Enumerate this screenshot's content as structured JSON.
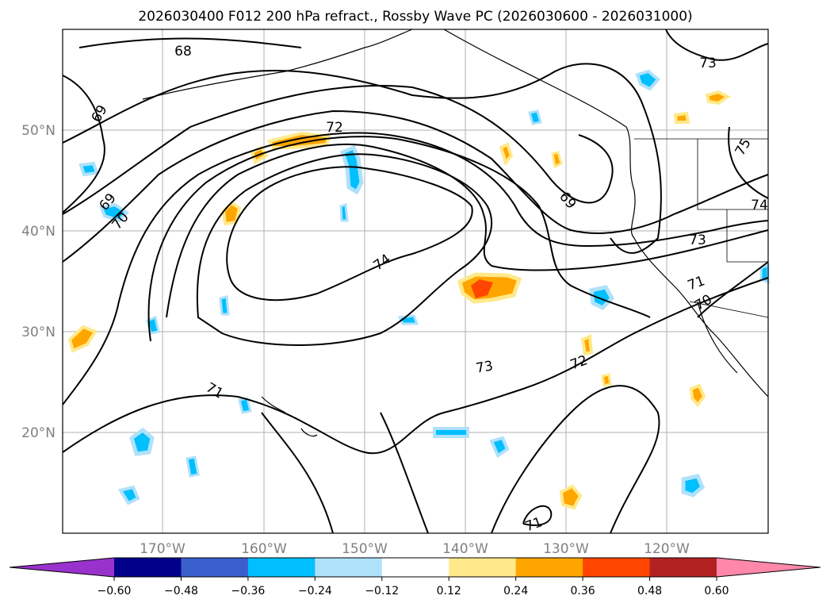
{
  "title": "2026030400 F012 200 hPa refract., Rossby Wave PC (2026030600 - 2026031000)",
  "lat_labels": [
    "20°N",
    "30°N",
    "40°N",
    "50°N"
  ],
  "lon_labels": [
    "170°W",
    "160°W",
    "150°W",
    "140°W",
    "130°W",
    "120°W"
  ],
  "contour_labels": [
    "68",
    "69",
    "69",
    "70",
    "71",
    "71",
    "71",
    "72",
    "72",
    "73",
    "73",
    "73",
    "74",
    "74",
    "75",
    "70",
    "69"
  ],
  "colorbar": {
    "ticks": [
      "−0.60",
      "−0.48",
      "−0.36",
      "−0.24",
      "−0.12",
      "0.12",
      "0.24",
      "0.36",
      "0.48",
      "0.60"
    ],
    "colors": [
      "#9932cc",
      "#00008b",
      "#3a5fcd",
      "#00bfff",
      "#afe1fa",
      "#ffffff",
      "#ffe98a",
      "#ffa500",
      "#ff4500",
      "#b22222",
      "#ff88aa"
    ]
  },
  "colors": {
    "map_line": "#000000",
    "grid": "#b0b0b0",
    "tick_label": "#808080"
  }
}
